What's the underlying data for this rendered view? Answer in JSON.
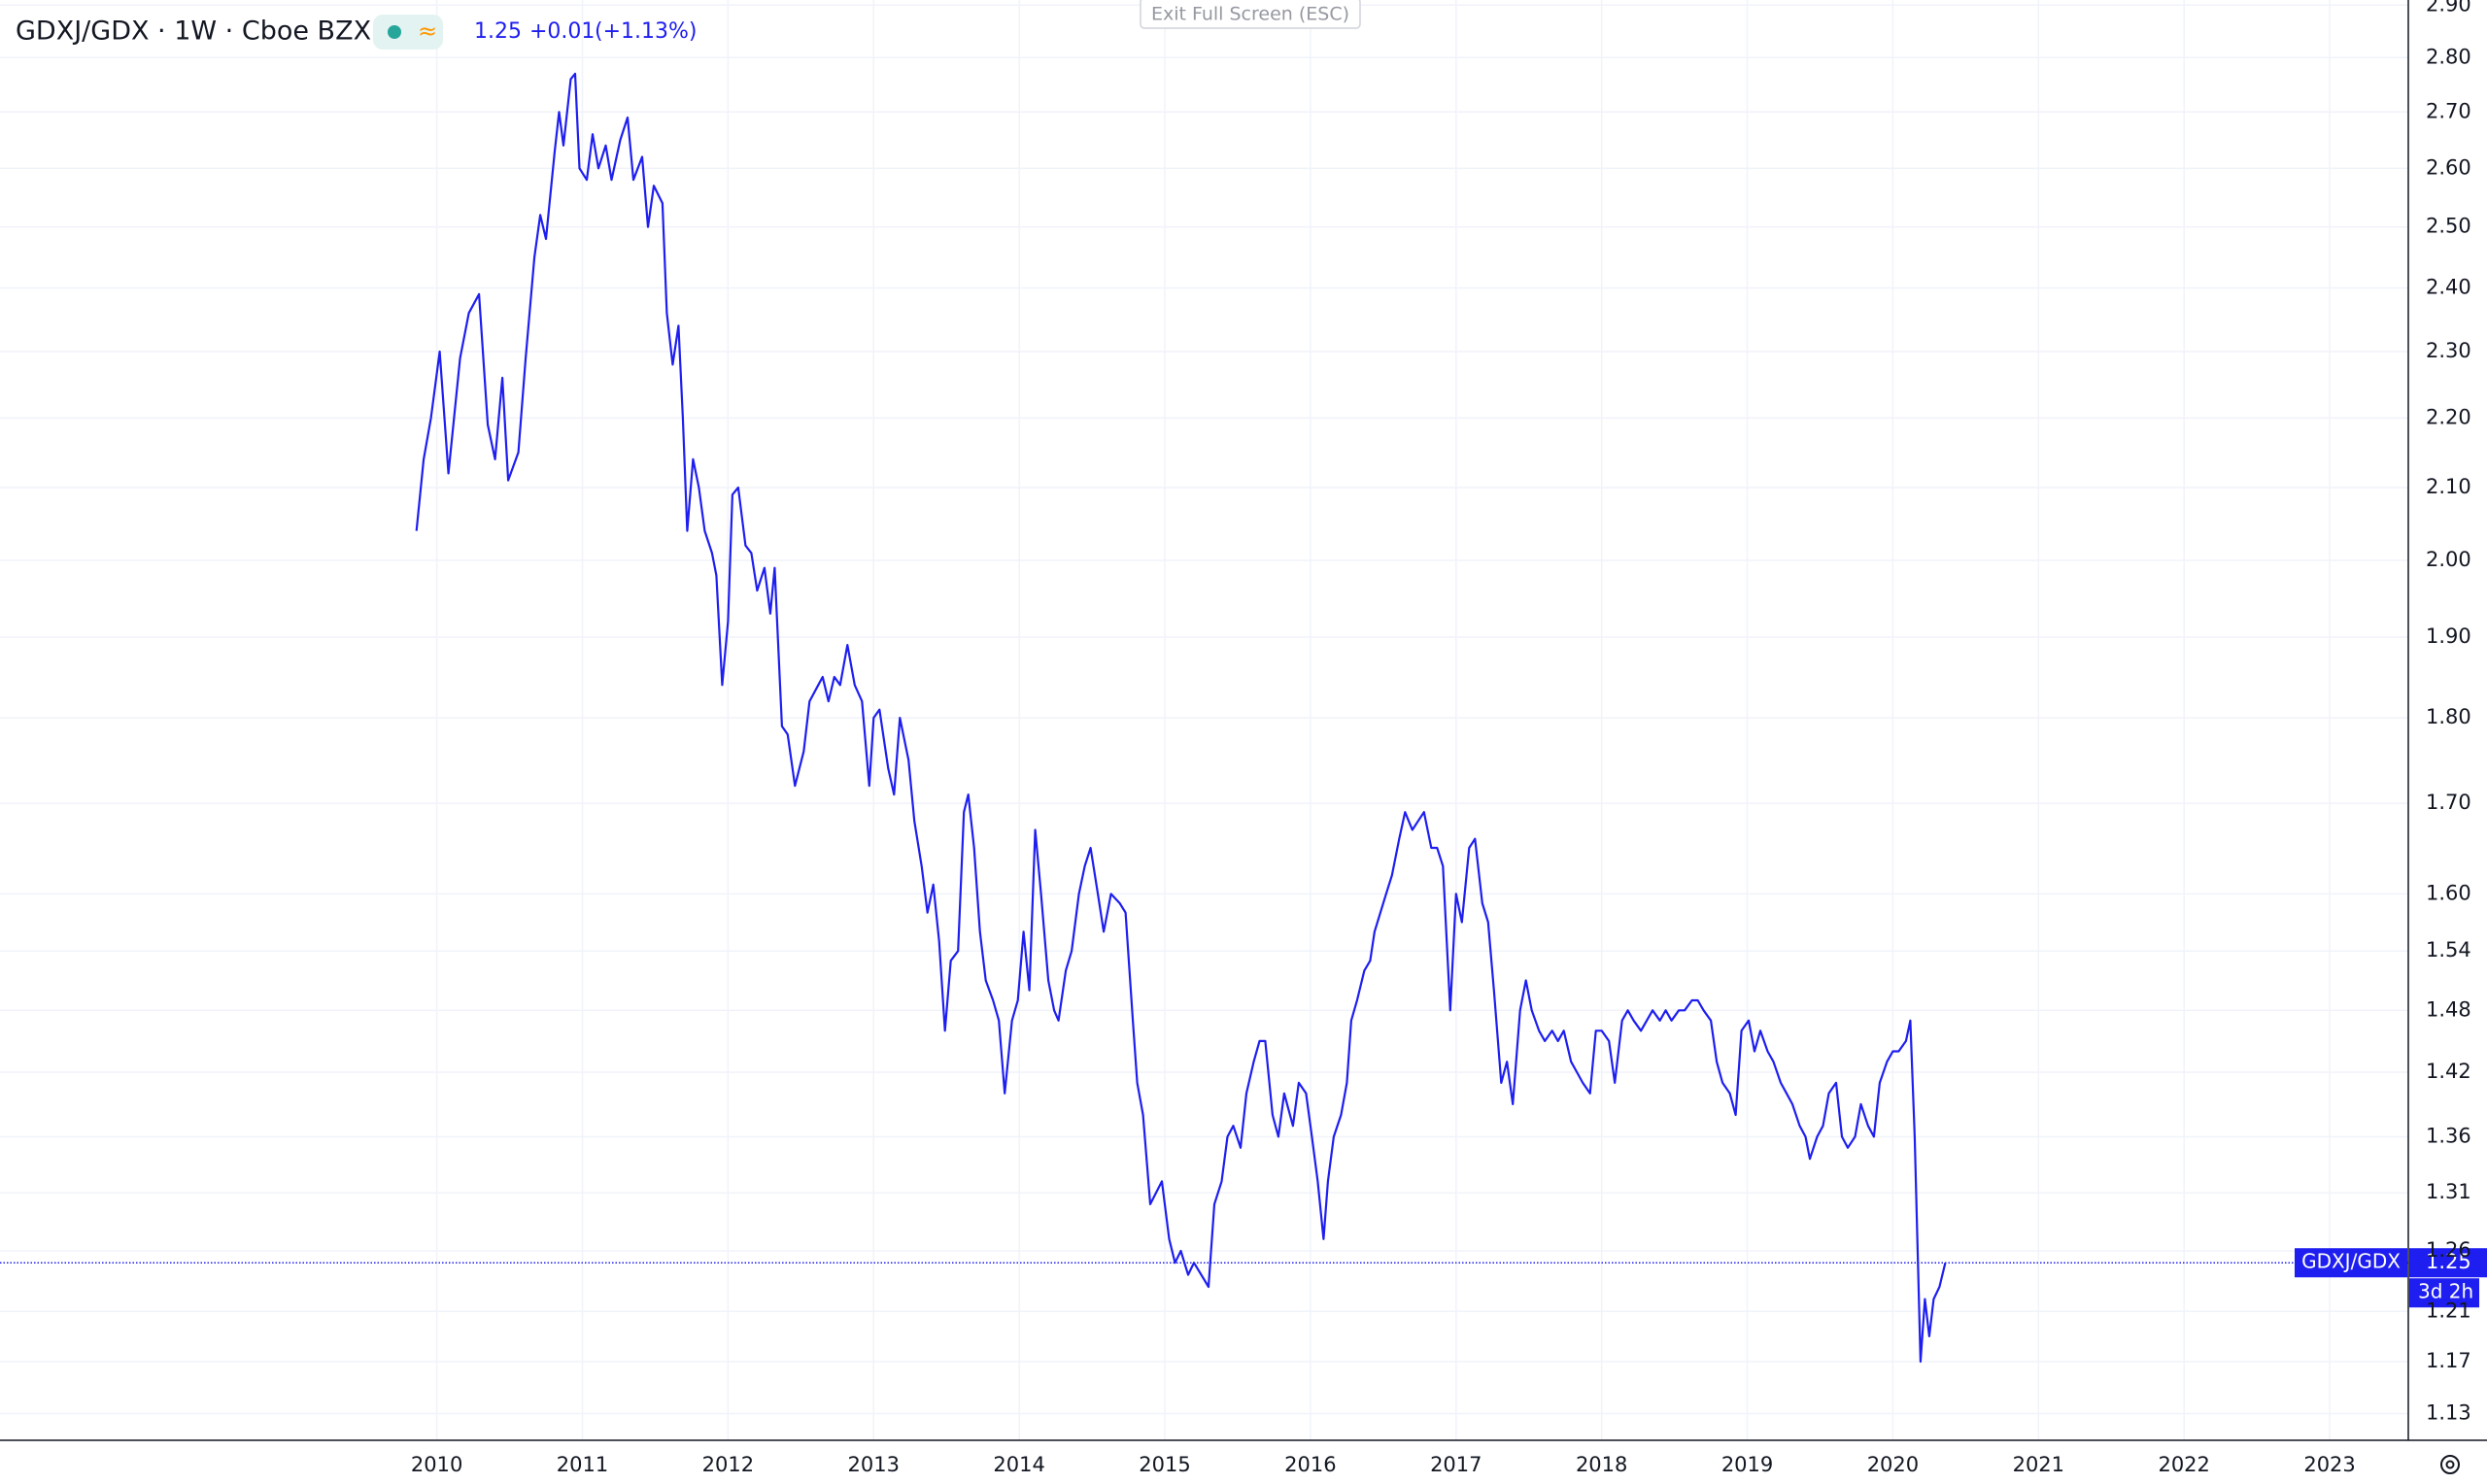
{
  "chart_data": {
    "type": "line",
    "title": "GDXJ/GDX · 1W · Cboe BZX",
    "header": {
      "last": 1.25,
      "change": "+0.01",
      "change_pct": "(+1.13%)"
    },
    "button": "Exit Full Screen (ESC)",
    "countdown": "3d 2h",
    "log_scale": true,
    "grid": true,
    "xlim": [
      2007,
      2023.54
    ],
    "xticks": [
      2010,
      2011,
      2012,
      2013,
      2014,
      2015,
      2016,
      2017,
      2018,
      2019,
      2020,
      2021,
      2022,
      2023
    ],
    "ylim": [
      1.11,
      2.91
    ],
    "yticks": [
      1.13,
      1.17,
      1.21,
      1.26,
      1.31,
      1.36,
      1.42,
      1.48,
      1.54,
      {
        "value": 1.6,
        "label": "1.60"
      },
      {
        "value": 1.7,
        "label": "1.70"
      },
      {
        "value": 1.8,
        "label": "1.80"
      },
      {
        "value": 1.9,
        "label": "1.90"
      },
      {
        "value": 2.0,
        "label": "2.00"
      },
      {
        "value": 2.1,
        "label": "2.10"
      },
      {
        "value": 2.2,
        "label": "2.20"
      },
      {
        "value": 2.3,
        "label": "2.30"
      },
      {
        "value": 2.4,
        "label": "2.40"
      },
      {
        "value": 2.5,
        "label": "2.50"
      },
      {
        "value": 2.6,
        "label": "2.60"
      },
      {
        "value": 2.7,
        "label": "2.70"
      },
      {
        "value": 2.8,
        "label": "2.80"
      },
      {
        "value": 2.9,
        "label": "2.90"
      }
    ],
    "last_value": 1.25,
    "x": [
      2009.86,
      2009.91,
      2009.96,
      2010.02,
      2010.08,
      2010.16,
      2010.22,
      2010.29,
      2010.35,
      2010.4,
      2010.45,
      2010.49,
      2010.56,
      2010.61,
      2010.67,
      2010.71,
      2010.75,
      2010.81,
      2010.84,
      2010.87,
      2010.92,
      2010.95,
      2010.98,
      2011.03,
      2011.07,
      2011.11,
      2011.16,
      2011.2,
      2011.26,
      2011.31,
      2011.35,
      2011.41,
      2011.45,
      2011.49,
      2011.55,
      2011.58,
      2011.62,
      2011.66,
      2011.69,
      2011.72,
      2011.76,
      2011.8,
      2011.84,
      2011.89,
      2011.92,
      2011.96,
      2012.0,
      2012.03,
      2012.07,
      2012.12,
      2012.16,
      2012.2,
      2012.25,
      2012.29,
      2012.32,
      2012.37,
      2012.41,
      2012.46,
      2012.52,
      2012.56,
      2012.62,
      2012.65,
      2012.69,
      2012.73,
      2012.77,
      2012.82,
      2012.87,
      2012.92,
      2012.97,
      2013.0,
      2013.04,
      2013.1,
      2013.14,
      2013.18,
      2013.24,
      2013.28,
      2013.33,
      2013.37,
      2013.41,
      2013.45,
      2013.49,
      2013.53,
      2013.58,
      2013.62,
      2013.65,
      2013.69,
      2013.73,
      2013.77,
      2013.82,
      2013.86,
      2013.9,
      2013.95,
      2013.99,
      2014.03,
      2014.07,
      2014.11,
      2014.15,
      2014.2,
      2014.24,
      2014.27,
      2014.32,
      2014.36,
      2014.41,
      2014.45,
      2014.49,
      2014.54,
      2014.58,
      2014.63,
      2014.69,
      2014.73,
      2014.78,
      2014.81,
      2014.85,
      2014.9,
      2014.94,
      2014.98,
      2015.03,
      2015.07,
      2015.11,
      2015.16,
      2015.2,
      2015.25,
      2015.3,
      2015.34,
      2015.39,
      2015.43,
      2015.47,
      2015.52,
      2015.56,
      2015.61,
      2015.65,
      2015.69,
      2015.74,
      2015.78,
      2015.82,
      2015.88,
      2015.92,
      2015.97,
      2016.01,
      2016.05,
      2016.09,
      2016.12,
      2016.16,
      2016.21,
      2016.25,
      2016.28,
      2016.32,
      2016.37,
      2016.41,
      2016.44,
      2016.48,
      2016.52,
      2016.56,
      2016.61,
      2016.65,
      2016.7,
      2016.74,
      2016.78,
      2016.83,
      2016.87,
      2016.91,
      2016.96,
      2017.0,
      2017.04,
      2017.09,
      2017.13,
      2017.18,
      2017.22,
      2017.26,
      2017.31,
      2017.35,
      2017.39,
      2017.44,
      2017.48,
      2017.52,
      2017.57,
      2017.61,
      2017.66,
      2017.7,
      2017.74,
      2017.79,
      2017.83,
      2017.87,
      2017.92,
      2017.96,
      2018.0,
      2018.05,
      2018.09,
      2018.14,
      2018.18,
      2018.22,
      2018.27,
      2018.31,
      2018.35,
      2018.4,
      2018.44,
      2018.48,
      2018.53,
      2018.57,
      2018.62,
      2018.66,
      2018.7,
      2018.75,
      2018.79,
      2018.83,
      2018.88,
      2018.92,
      2018.96,
      2019.01,
      2019.05,
      2019.09,
      2019.14,
      2019.18,
      2019.23,
      2019.27,
      2019.31,
      2019.36,
      2019.4,
      2019.43,
      2019.48,
      2019.52,
      2019.56,
      2019.61,
      2019.65,
      2019.69,
      2019.74,
      2019.78,
      2019.83,
      2019.87,
      2019.91,
      2019.96,
      2020.0,
      2020.04,
      2020.09,
      2020.12,
      2020.15,
      2020.19,
      2020.22,
      2020.25,
      2020.28,
      2020.32,
      2020.36
    ],
    "series": [
      {
        "name": "GDXJ/GDX",
        "color": "#1e1ef0",
        "values": [
          2.04,
          2.14,
          2.2,
          2.3,
          2.12,
          2.29,
          2.36,
          2.39,
          2.19,
          2.14,
          2.26,
          2.11,
          2.15,
          2.29,
          2.45,
          2.52,
          2.48,
          2.63,
          2.7,
          2.64,
          2.76,
          2.77,
          2.6,
          2.58,
          2.66,
          2.6,
          2.64,
          2.58,
          2.65,
          2.69,
          2.58,
          2.62,
          2.5,
          2.57,
          2.54,
          2.36,
          2.28,
          2.34,
          2.2,
          2.04,
          2.14,
          2.1,
          2.04,
          2.01,
          1.98,
          1.84,
          1.92,
          2.09,
          2.1,
          2.02,
          2.01,
          1.96,
          1.99,
          1.93,
          1.99,
          1.79,
          1.78,
          1.72,
          1.76,
          1.82,
          1.84,
          1.85,
          1.82,
          1.85,
          1.84,
          1.89,
          1.84,
          1.82,
          1.72,
          1.8,
          1.81,
          1.74,
          1.71,
          1.8,
          1.75,
          1.68,
          1.63,
          1.58,
          1.61,
          1.55,
          1.46,
          1.53,
          1.54,
          1.69,
          1.71,
          1.65,
          1.56,
          1.51,
          1.49,
          1.47,
          1.4,
          1.47,
          1.49,
          1.56,
          1.5,
          1.67,
          1.6,
          1.51,
          1.48,
          1.47,
          1.52,
          1.54,
          1.6,
          1.63,
          1.65,
          1.6,
          1.56,
          1.6,
          1.59,
          1.58,
          1.47,
          1.41,
          1.38,
          1.3,
          1.31,
          1.32,
          1.27,
          1.25,
          1.26,
          1.24,
          1.25,
          1.24,
          1.23,
          1.3,
          1.32,
          1.36,
          1.37,
          1.35,
          1.4,
          1.43,
          1.45,
          1.45,
          1.38,
          1.36,
          1.4,
          1.37,
          1.41,
          1.4,
          1.36,
          1.32,
          1.27,
          1.32,
          1.36,
          1.38,
          1.41,
          1.47,
          1.49,
          1.52,
          1.53,
          1.56,
          1.58,
          1.6,
          1.62,
          1.66,
          1.69,
          1.67,
          1.68,
          1.69,
          1.65,
          1.65,
          1.63,
          1.48,
          1.6,
          1.57,
          1.65,
          1.66,
          1.59,
          1.57,
          1.5,
          1.41,
          1.43,
          1.39,
          1.48,
          1.51,
          1.48,
          1.46,
          1.45,
          1.46,
          1.45,
          1.46,
          1.43,
          1.42,
          1.41,
          1.4,
          1.46,
          1.46,
          1.45,
          1.41,
          1.47,
          1.48,
          1.47,
          1.46,
          1.47,
          1.48,
          1.47,
          1.48,
          1.47,
          1.48,
          1.48,
          1.49,
          1.49,
          1.48,
          1.47,
          1.43,
          1.41,
          1.4,
          1.38,
          1.46,
          1.47,
          1.44,
          1.46,
          1.44,
          1.43,
          1.41,
          1.4,
          1.39,
          1.37,
          1.36,
          1.34,
          1.36,
          1.37,
          1.4,
          1.41,
          1.36,
          1.35,
          1.36,
          1.39,
          1.37,
          1.36,
          1.41,
          1.43,
          1.44,
          1.44,
          1.45,
          1.47,
          1.36,
          1.17,
          1.22,
          1.19,
          1.22,
          1.23,
          1.25
        ]
      }
    ]
  }
}
